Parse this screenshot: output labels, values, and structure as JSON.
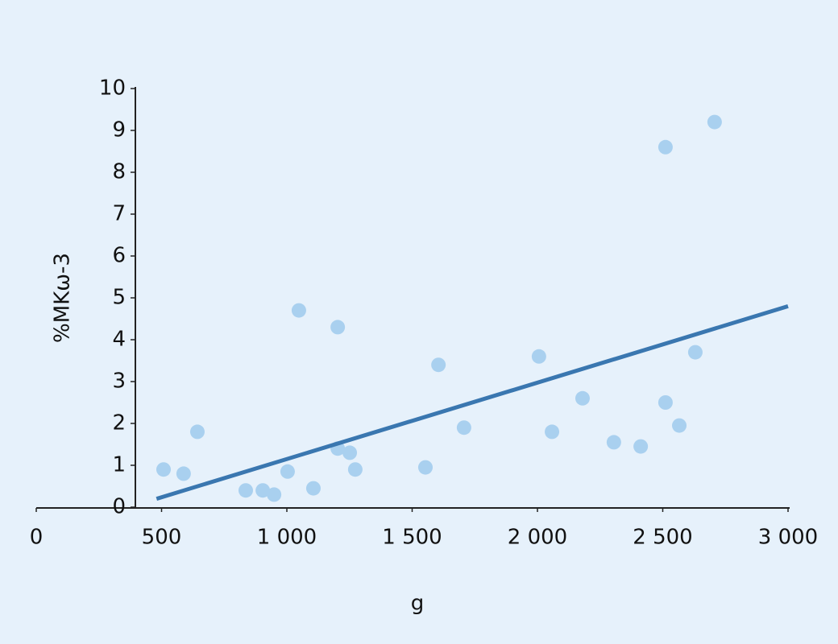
{
  "chart_data": {
    "type": "scatter",
    "x_label": "g",
    "y_label": "%MKω-3",
    "x": [
      508,
      588,
      643,
      836,
      904,
      949,
      1003,
      1048,
      1106,
      1203,
      1203,
      1251,
      1273,
      1553,
      1605,
      1707,
      2006,
      2058,
      2180,
      2305,
      2412,
      2511,
      2511,
      2566,
      2630,
      2707
    ],
    "values": [
      0.9,
      0.8,
      1.8,
      0.4,
      0.4,
      0.3,
      0.85,
      4.7,
      0.45,
      4.3,
      1.4,
      1.3,
      0.9,
      0.95,
      3.4,
      1.9,
      3.6,
      1.8,
      2.6,
      1.55,
      1.45,
      8.6,
      2.5,
      1.95,
      3.7,
      9.2
    ],
    "color": "#a9d0ef",
    "trendline": {
      "x": [
        480,
        3000
      ],
      "y": [
        0.2,
        4.8
      ],
      "color": "#3a77b0"
    },
    "xlim": [
      0,
      3000
    ],
    "xticks": [
      0,
      500,
      {
        "value": 1000,
        "label": "1 000"
      },
      {
        "value": 1500,
        "label": "1 500"
      },
      {
        "value": 2000,
        "label": "2 000"
      },
      {
        "value": 2500,
        "label": "2 500"
      },
      {
        "value": 3000,
        "label": "3 000"
      }
    ],
    "ylim": [
      0,
      10
    ],
    "yticks": [
      0,
      1,
      2,
      3,
      4,
      5,
      6,
      7,
      8,
      9,
      10
    ]
  }
}
